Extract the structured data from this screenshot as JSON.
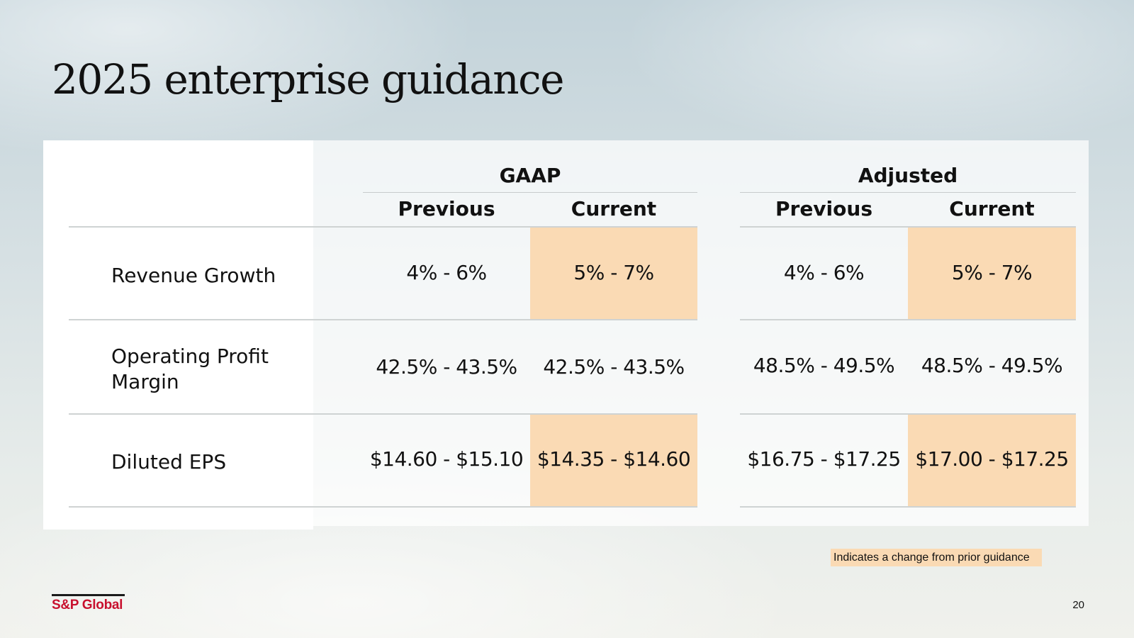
{
  "title": "2025 enterprise guidance",
  "groups": {
    "gaap": "GAAP",
    "adjusted": "Adjusted"
  },
  "columns": {
    "gaap_previous": "Previous",
    "gaap_current": "Current",
    "adj_previous": "Previous",
    "adj_current": "Current"
  },
  "rows": [
    {
      "label": "Revenue Growth",
      "gaap_previous": "4% - 6%",
      "gaap_current": "5% - 7%",
      "adj_previous": "4% - 6%",
      "adj_current": "5% - 7%",
      "changed": true
    },
    {
      "label_line1": "Operating Profit",
      "label_line2": "Margin",
      "gaap_previous": "42.5% - 43.5%",
      "gaap_current": "42.5% - 43.5%",
      "adj_previous": "48.5% - 49.5%",
      "adj_current": "48.5% - 49.5%",
      "changed": false
    },
    {
      "label": "Diluted EPS",
      "gaap_previous": "$14.60 - $15.10",
      "gaap_current": "$14.35 - $14.60",
      "adj_previous": "$16.75 - $17.25",
      "adj_current": "$17.00 - $17.25",
      "changed": true
    }
  ],
  "legend": "Indicates a change from prior guidance",
  "highlight_color": "#fadab4",
  "brand": {
    "logo_text": "S&P Global",
    "color": "#c8102e"
  },
  "page_number": "20"
}
